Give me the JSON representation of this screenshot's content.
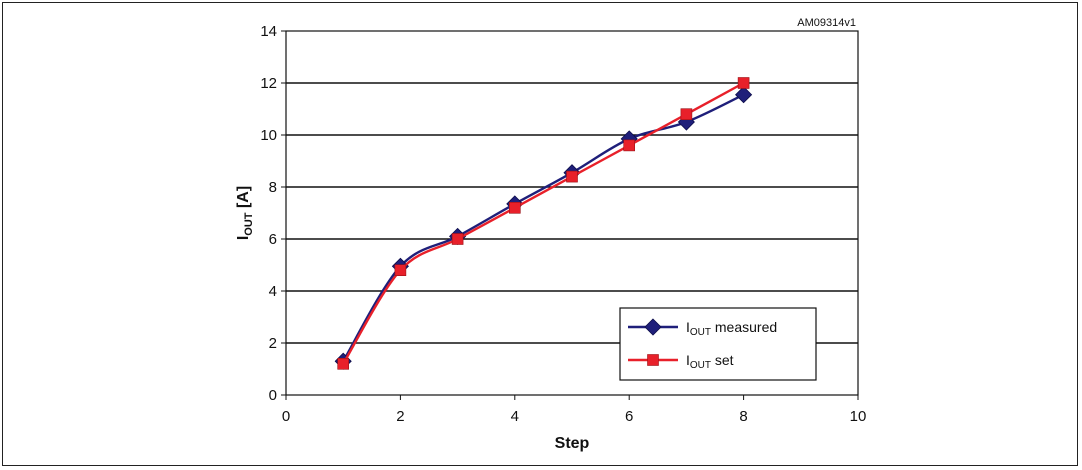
{
  "figure_ref": "AM09314v1",
  "chart_data": {
    "type": "line",
    "title": "",
    "xlabel": "Step",
    "ylabel": {
      "main": "I",
      "sub": "OUT",
      "unit": " [A]"
    },
    "xlim": [
      0,
      10
    ],
    "ylim": [
      0,
      14
    ],
    "xticks": [
      0,
      2,
      4,
      6,
      8,
      10
    ],
    "yticks": [
      0,
      2,
      4,
      6,
      8,
      10,
      12,
      14
    ],
    "grid": "horizontal",
    "legend_position": "lower-right",
    "series": [
      {
        "label_main": "I",
        "label_sub": "OUT",
        "label_rest": " measured",
        "color": "#1f1f7a",
        "marker": "diamond",
        "x": [
          1,
          2,
          3,
          4,
          5,
          6,
          7,
          8
        ],
        "y": [
          1.3,
          4.95,
          6.1,
          7.35,
          8.55,
          9.85,
          10.5,
          11.55
        ]
      },
      {
        "label_main": "I",
        "label_sub": "OUT",
        "label_rest": " set",
        "color": "#e8202a",
        "marker": "square",
        "x": [
          1,
          2,
          3,
          4,
          5,
          6,
          7,
          8
        ],
        "y": [
          1.2,
          4.8,
          6.0,
          7.2,
          8.4,
          9.6,
          10.8,
          12.0
        ]
      }
    ]
  }
}
